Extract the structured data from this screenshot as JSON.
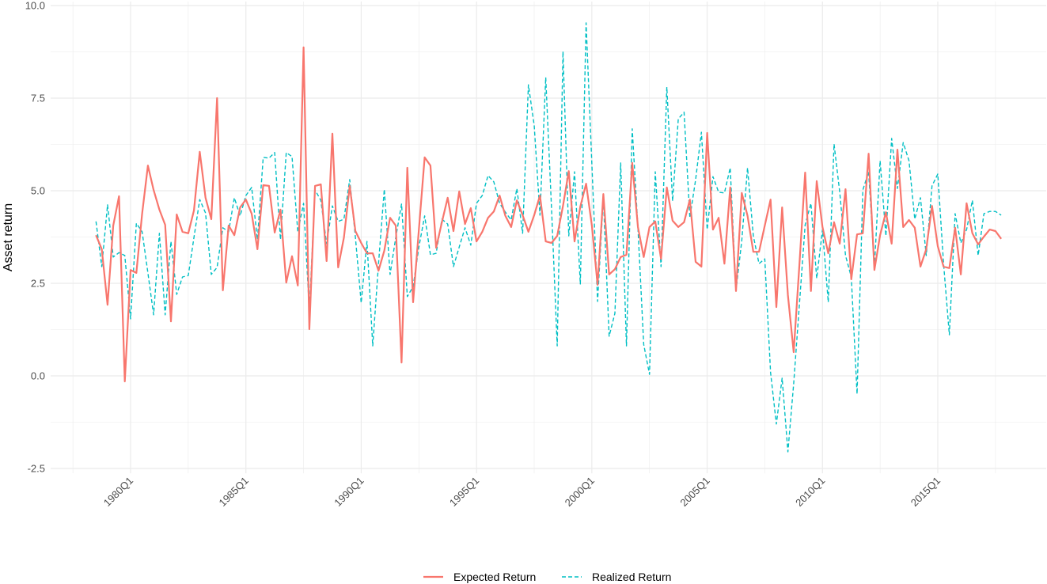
{
  "chart_data": {
    "type": "line",
    "title": "",
    "xlabel": "",
    "ylabel": "Asset return",
    "ylim": [
      -2.63,
      10.11
    ],
    "yticks": [
      "-2.5",
      "0.0",
      "2.5",
      "5.0",
      "7.5",
      "10.0"
    ],
    "xticks": [
      "1980Q1",
      "1985Q1",
      "1990Q1",
      "1995Q1",
      "2000Q1",
      "2005Q1",
      "2010Q1",
      "2015Q1"
    ],
    "grid": true,
    "legend_position": "bottom",
    "x": [
      "1978Q3",
      "1978Q4",
      "1979Q1",
      "1979Q2",
      "1979Q3",
      "1979Q4",
      "1980Q1",
      "1980Q2",
      "1980Q3",
      "1980Q4",
      "1981Q1",
      "1981Q2",
      "1981Q3",
      "1981Q4",
      "1982Q1",
      "1982Q2",
      "1982Q3",
      "1982Q4",
      "1983Q1",
      "1983Q2",
      "1983Q3",
      "1983Q4",
      "1984Q1",
      "1984Q2",
      "1984Q3",
      "1984Q4",
      "1985Q1",
      "1985Q2",
      "1985Q3",
      "1985Q4",
      "1986Q1",
      "1986Q2",
      "1986Q3",
      "1986Q4",
      "1987Q1",
      "1987Q2",
      "1987Q3",
      "1987Q4",
      "1988Q1",
      "1988Q2",
      "1988Q3",
      "1988Q4",
      "1989Q1",
      "1989Q2",
      "1989Q3",
      "1989Q4",
      "1990Q1",
      "1990Q2",
      "1990Q3",
      "1990Q4",
      "1991Q1",
      "1991Q2",
      "1991Q3",
      "1991Q4",
      "1992Q1",
      "1992Q2",
      "1992Q3",
      "1992Q4",
      "1993Q1",
      "1993Q2",
      "1993Q3",
      "1993Q4",
      "1994Q1",
      "1994Q2",
      "1994Q3",
      "1994Q4",
      "1995Q1",
      "1995Q2",
      "1995Q3",
      "1995Q4",
      "1996Q1",
      "1996Q2",
      "1996Q3",
      "1996Q4",
      "1997Q1",
      "1997Q2",
      "1997Q3",
      "1997Q4",
      "1998Q1",
      "1998Q2",
      "1998Q3",
      "1998Q4",
      "1999Q1",
      "1999Q2",
      "1999Q3",
      "1999Q4",
      "2000Q1",
      "2000Q2",
      "2000Q3",
      "2000Q4",
      "2001Q1",
      "2001Q2",
      "2001Q3",
      "2001Q4",
      "2002Q1",
      "2002Q2",
      "2002Q3",
      "2002Q4",
      "2003Q1",
      "2003Q2",
      "2003Q3",
      "2003Q4",
      "2004Q1",
      "2004Q2",
      "2004Q3",
      "2004Q4",
      "2005Q1",
      "2005Q2",
      "2005Q3",
      "2005Q4",
      "2006Q1",
      "2006Q2",
      "2006Q3",
      "2006Q4",
      "2007Q1",
      "2007Q2",
      "2007Q3",
      "2007Q4",
      "2008Q1",
      "2008Q2",
      "2008Q3",
      "2008Q4",
      "2009Q1",
      "2009Q2",
      "2009Q3",
      "2009Q4",
      "2010Q1",
      "2010Q2",
      "2010Q3",
      "2010Q4",
      "2011Q1",
      "2011Q2",
      "2011Q3",
      "2011Q4",
      "2012Q1",
      "2012Q2",
      "2012Q3",
      "2012Q4",
      "2013Q1",
      "2013Q2",
      "2013Q3",
      "2013Q4",
      "2014Q1",
      "2014Q2",
      "2014Q3",
      "2014Q4",
      "2015Q1",
      "2015Q2",
      "2015Q3",
      "2015Q4",
      "2016Q1",
      "2016Q2",
      "2016Q3",
      "2016Q4",
      "2017Q1",
      "2017Q2",
      "2017Q3",
      "2017Q4"
    ],
    "series": [
      {
        "name": "Expected Return",
        "color": "#F8766D",
        "dash": "solid",
        "values": [
          3.8,
          3.42,
          1.92,
          4.06,
          4.85,
          -0.15,
          2.86,
          2.78,
          4.38,
          5.68,
          5.02,
          4.49,
          4.08,
          1.47,
          4.36,
          3.89,
          3.85,
          4.47,
          6.05,
          4.81,
          4.23,
          7.5,
          2.31,
          4.06,
          3.8,
          4.55,
          4.76,
          4.38,
          3.42,
          5.15,
          5.13,
          3.87,
          4.49,
          2.52,
          3.23,
          2.44,
          8.87,
          1.26,
          5.13,
          5.17,
          3.1,
          6.54,
          2.93,
          3.74,
          5.13,
          3.91,
          3.59,
          3.31,
          3.31,
          2.84,
          3.38,
          4.27,
          4.06,
          0.36,
          5.62,
          1.99,
          3.95,
          5.9,
          5.68,
          3.46,
          4.15,
          4.81,
          3.91,
          4.98,
          4.1,
          4.53,
          3.63,
          3.89,
          4.27,
          4.44,
          4.87,
          4.32,
          4.02,
          4.74,
          4.34,
          3.89,
          4.34,
          4.87,
          3.63,
          3.59,
          3.78,
          4.59,
          5.53,
          3.63,
          4.57,
          5.19,
          4.06,
          2.46,
          4.91,
          2.74,
          2.88,
          3.21,
          3.27,
          5.75,
          4.02,
          3.21,
          4.02,
          4.17,
          3.16,
          5.09,
          4.19,
          4.02,
          4.15,
          4.76,
          3.08,
          2.95,
          6.56,
          3.95,
          4.27,
          3.03,
          5.09,
          2.29,
          4.94,
          4.32,
          3.35,
          3.35,
          4.06,
          4.76,
          1.86,
          4.55,
          2.18,
          0.64,
          2.99,
          5.49,
          2.29,
          5.26,
          4.02,
          3.31,
          4.15,
          3.57,
          5.04,
          2.61,
          3.82,
          3.85,
          6.0,
          2.86,
          3.8,
          4.42,
          3.57,
          6.11,
          4.02,
          4.21,
          4.0,
          2.95,
          3.42,
          4.59,
          3.5,
          2.95,
          2.91,
          4.0,
          2.74,
          4.66,
          3.85,
          3.55,
          3.76,
          3.95,
          3.91,
          3.7
        ]
      },
      {
        "name": "Realized Return",
        "color": "#00BFC4",
        "dash": "dashed",
        "values": [
          4.17,
          2.95,
          4.62,
          3.21,
          3.33,
          3.25,
          1.54,
          4.12,
          3.89,
          2.78,
          1.65,
          3.85,
          1.65,
          3.63,
          2.2,
          2.67,
          2.71,
          3.74,
          4.76,
          4.4,
          2.74,
          2.93,
          4.0,
          3.89,
          4.81,
          4.32,
          4.87,
          5.09,
          3.68,
          5.9,
          5.88,
          6.03,
          3.68,
          6.03,
          5.92,
          3.89,
          4.66,
          1.75,
          5.02,
          4.74,
          3.57,
          4.59,
          4.17,
          4.23,
          5.3,
          3.74,
          1.97,
          3.63,
          0.81,
          3.03,
          5.04,
          2.74,
          3.74,
          4.64,
          2.14,
          2.41,
          3.48,
          4.32,
          3.27,
          3.31,
          4.23,
          4.1,
          2.95,
          3.48,
          4.0,
          3.53,
          4.66,
          4.87,
          5.41,
          5.24,
          4.66,
          4.42,
          4.21,
          5.06,
          3.85,
          7.86,
          6.77,
          4.34,
          8.06,
          4.53,
          0.81,
          8.76,
          3.78,
          5.51,
          2.48,
          9.53,
          5.71,
          2.01,
          4.81,
          1.07,
          1.69,
          5.75,
          0.81,
          6.67,
          4.0,
          0.85,
          0.04,
          5.51,
          2.95,
          7.8,
          4.72,
          6.94,
          7.12,
          4.27,
          5.3,
          6.58,
          3.95,
          5.38,
          4.96,
          4.94,
          5.62,
          2.31,
          3.65,
          5.62,
          3.78,
          3.03,
          3.16,
          0.09,
          -1.3,
          -0.06,
          -2.05,
          -0.21,
          1.92,
          4.08,
          4.66,
          2.63,
          3.95,
          1.99,
          6.26,
          4.96,
          3.25,
          2.67,
          -0.49,
          5.02,
          5.51,
          2.93,
          5.81,
          3.78,
          6.41,
          5.06,
          6.3,
          5.81,
          4.23,
          4.81,
          3.25,
          5.13,
          5.45,
          3.03,
          1.11,
          4.38,
          3.59,
          3.95,
          4.74,
          3.25,
          4.38,
          4.44,
          4.44,
          4.34
        ]
      }
    ]
  }
}
